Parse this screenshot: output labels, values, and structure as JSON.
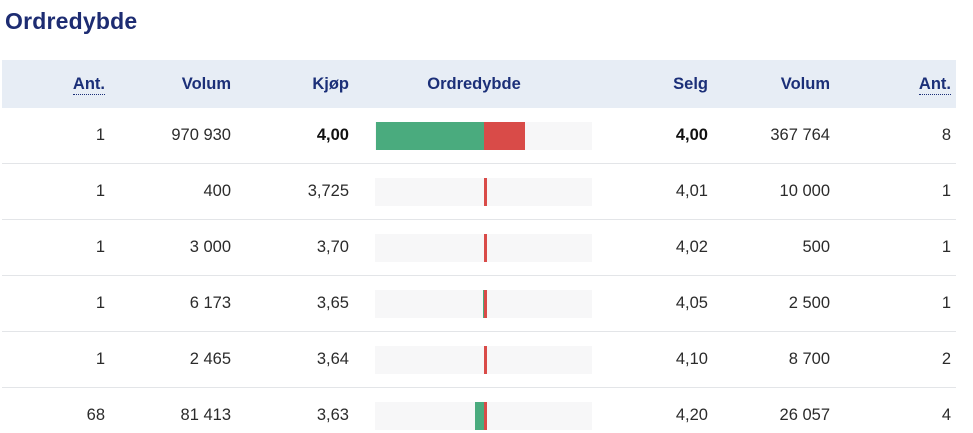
{
  "page": {
    "title": "Ordredybde"
  },
  "table": {
    "headers": [
      "Ant.",
      "Volum",
      "Kjøp",
      "Ordredybde",
      "Selg",
      "Volum",
      "Ant."
    ],
    "rows": [
      {
        "orders_buy": "1",
        "volume_buy": "970 930",
        "bid": "4,00",
        "ask": "4,00",
        "volume_sell": "367 764",
        "orders_sell": "8",
        "buy_volume": 970930,
        "sell_volume": 367764,
        "best": true
      },
      {
        "orders_buy": "1",
        "volume_buy": "400",
        "bid": "3,725",
        "ask": "4,01",
        "volume_sell": "10 000",
        "orders_sell": "1",
        "buy_volume": 400,
        "sell_volume": 10000,
        "best": false
      },
      {
        "orders_buy": "1",
        "volume_buy": "3 000",
        "bid": "3,70",
        "ask": "4,02",
        "volume_sell": "500",
        "orders_sell": "1",
        "buy_volume": 3000,
        "sell_volume": 500,
        "best": false
      },
      {
        "orders_buy": "1",
        "volume_buy": "6 173",
        "bid": "3,65",
        "ask": "4,05",
        "volume_sell": "2 500",
        "orders_sell": "1",
        "buy_volume": 6173,
        "sell_volume": 2500,
        "best": false
      },
      {
        "orders_buy": "1",
        "volume_buy": "2 465",
        "bid": "3,64",
        "ask": "4,10",
        "volume_sell": "8 700",
        "orders_sell": "2",
        "buy_volume": 2465,
        "sell_volume": 8700,
        "best": false
      },
      {
        "orders_buy": "68",
        "volume_buy": "81 413",
        "bid": "3,63",
        "ask": "4,20",
        "volume_sell": "26 057",
        "orders_sell": "4",
        "buy_volume": 81413,
        "sell_volume": 26057,
        "best": false
      }
    ]
  },
  "chart_data": {
    "type": "bar",
    "title": "Ordredybde",
    "orientation": "horizontal-depth",
    "max_volume": 970930,
    "categories": [
      "4,00 / 4,00",
      "3,725 / 4,01",
      "3,70 / 4,02",
      "3,65 / 4,05",
      "3,64 / 4,10",
      "3,63 / 4,20"
    ],
    "series": [
      {
        "name": "Kjøp volum",
        "color": "#4aab7e",
        "values": [
          970930,
          400,
          3000,
          6173,
          2465,
          81413
        ]
      },
      {
        "name": "Selg volum",
        "color": "#d94b48",
        "values": [
          367764,
          10000,
          500,
          2500,
          8700,
          26057
        ]
      }
    ],
    "legend_position": "none",
    "grid": false
  },
  "colors": {
    "navy": "#1d2c72",
    "header_text": "#1b2f78",
    "buy_green": "#4aab7e",
    "sell_red": "#d94b48",
    "header_bg": "#e7edf5",
    "bar_track": "#f7f7f8",
    "row_border": "#e3e5e8",
    "cell_text": "#2b2b2b"
  }
}
